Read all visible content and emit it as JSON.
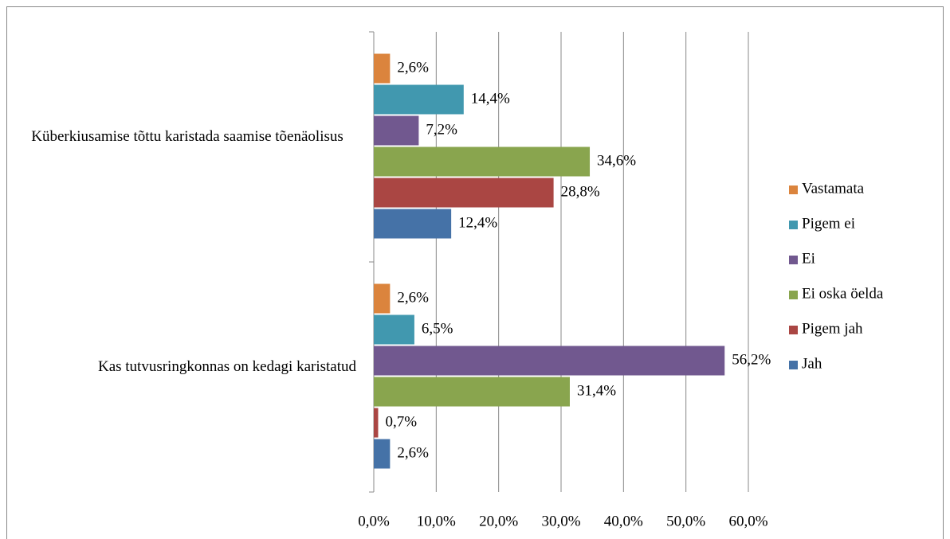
{
  "chart_data": {
    "type": "hbar",
    "categories": [
      "Küberkiusamise tõttu karistada saamise tõenäolisus",
      "Kas tutvusringkonnas on kedagi karistatud"
    ],
    "series": [
      {
        "name": "Jah",
        "color": "#4572a7",
        "values": [
          12.4,
          2.6
        ],
        "value_labels": [
          "12,4%",
          "2,6%"
        ]
      },
      {
        "name": "Pigem jah",
        "color": "#aa4643",
        "values": [
          28.8,
          0.7
        ],
        "value_labels": [
          "28,8%",
          "0,7%"
        ]
      },
      {
        "name": "Ei oska öelda",
        "color": "#89a54e",
        "values": [
          34.6,
          31.4
        ],
        "value_labels": [
          "34,6%",
          "31,4%"
        ]
      },
      {
        "name": "Ei",
        "color": "#71588f",
        "values": [
          7.2,
          56.2
        ],
        "value_labels": [
          "7,2%",
          "56,2%"
        ]
      },
      {
        "name": "Pigem ei",
        "color": "#4198af",
        "values": [
          14.4,
          6.5
        ],
        "value_labels": [
          "14,4%",
          "6,5%"
        ]
      },
      {
        "name": "Vastamata",
        "color": "#db843d",
        "values": [
          2.6,
          2.6
        ],
        "value_labels": [
          "2,6%",
          "2,6%"
        ]
      }
    ],
    "xlim": [
      0,
      60
    ],
    "xticks": [
      {
        "value": 0,
        "label": "0,0%"
      },
      {
        "value": 10,
        "label": "10,0%"
      },
      {
        "value": 20,
        "label": "20,0%"
      },
      {
        "value": 30,
        "label": "30,0%"
      },
      {
        "value": 40,
        "label": "40,0%"
      },
      {
        "value": 50,
        "label": "50,0%"
      },
      {
        "value": 60,
        "label": "60,0%"
      }
    ],
    "grid": true,
    "legend": "right"
  }
}
